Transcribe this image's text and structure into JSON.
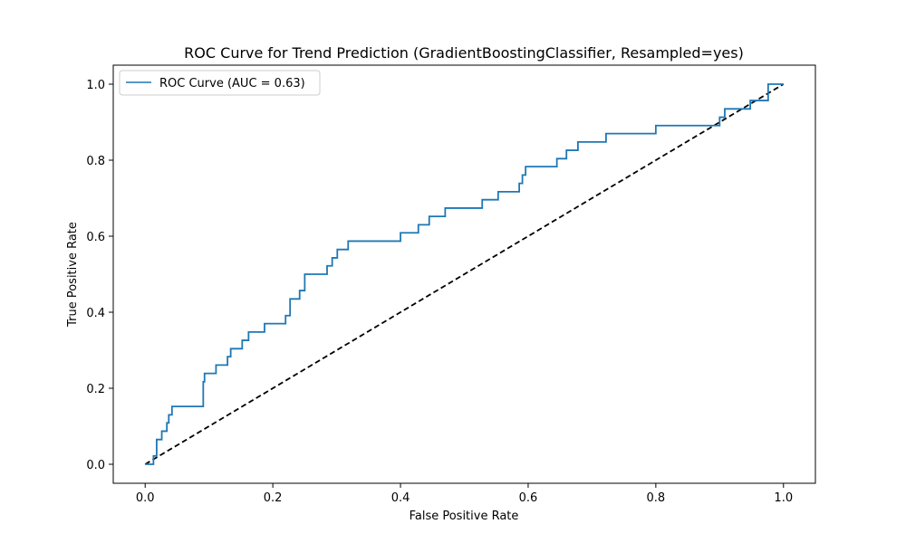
{
  "chart_data": {
    "type": "line",
    "title": "ROC Curve for Trend Prediction (GradientBoostingClassifier, Resampled=yes)",
    "xlabel": "False Positive Rate",
    "ylabel": "True Positive Rate",
    "xlim": [
      -0.05,
      1.05
    ],
    "ylim": [
      -0.05,
      1.05
    ],
    "xticks": [
      0.0,
      0.2,
      0.4,
      0.6,
      0.8,
      1.0
    ],
    "yticks": [
      0.0,
      0.2,
      0.4,
      0.6,
      0.8,
      1.0
    ],
    "xtick_labels": [
      "0.0",
      "0.2",
      "0.4",
      "0.6",
      "0.8",
      "1.0"
    ],
    "ytick_labels": [
      "0.0",
      "0.2",
      "0.4",
      "0.6",
      "0.8",
      "1.0"
    ],
    "grid": false,
    "legend_position": "top-left",
    "series": [
      {
        "name": "ROC Curve (AUC = 0.63)",
        "color": "#1f77b4",
        "style": "step",
        "x": [
          0.0,
          0.013,
          0.013,
          0.018,
          0.018,
          0.026,
          0.026,
          0.034,
          0.034,
          0.037,
          0.037,
          0.042,
          0.042,
          0.091,
          0.091,
          0.093,
          0.093,
          0.111,
          0.111,
          0.129,
          0.129,
          0.134,
          0.134,
          0.152,
          0.152,
          0.162,
          0.162,
          0.187,
          0.187,
          0.22,
          0.22,
          0.227,
          0.227,
          0.242,
          0.242,
          0.25,
          0.25,
          0.285,
          0.285,
          0.293,
          0.293,
          0.301,
          0.301,
          0.318,
          0.318,
          0.4,
          0.4,
          0.428,
          0.428,
          0.445,
          0.445,
          0.47,
          0.47,
          0.528,
          0.528,
          0.553,
          0.553,
          0.586,
          0.586,
          0.591,
          0.591,
          0.596,
          0.596,
          0.645,
          0.645,
          0.66,
          0.66,
          0.678,
          0.678,
          0.722,
          0.722,
          0.8,
          0.8,
          0.9,
          0.9,
          0.908,
          0.908,
          0.948,
          0.948,
          0.976,
          0.976,
          1.0
        ],
        "y": [
          0.0,
          0.0,
          0.022,
          0.022,
          0.065,
          0.065,
          0.087,
          0.087,
          0.109,
          0.109,
          0.13,
          0.13,
          0.152,
          0.152,
          0.217,
          0.217,
          0.239,
          0.239,
          0.261,
          0.261,
          0.283,
          0.283,
          0.304,
          0.304,
          0.326,
          0.326,
          0.348,
          0.348,
          0.37,
          0.37,
          0.391,
          0.391,
          0.435,
          0.435,
          0.457,
          0.457,
          0.5,
          0.5,
          0.522,
          0.522,
          0.543,
          0.543,
          0.565,
          0.565,
          0.587,
          0.587,
          0.609,
          0.609,
          0.63,
          0.63,
          0.652,
          0.652,
          0.674,
          0.674,
          0.696,
          0.696,
          0.717,
          0.717,
          0.739,
          0.739,
          0.761,
          0.761,
          0.783,
          0.783,
          0.804,
          0.804,
          0.826,
          0.826,
          0.848,
          0.848,
          0.87,
          0.87,
          0.891,
          0.891,
          0.913,
          0.913,
          0.935,
          0.935,
          0.957,
          0.957,
          1.0,
          1.0
        ]
      },
      {
        "name": "",
        "color": "#000000",
        "style": "dashed",
        "x": [
          0.0,
          1.0
        ],
        "y": [
          0.0,
          1.0
        ]
      }
    ]
  }
}
